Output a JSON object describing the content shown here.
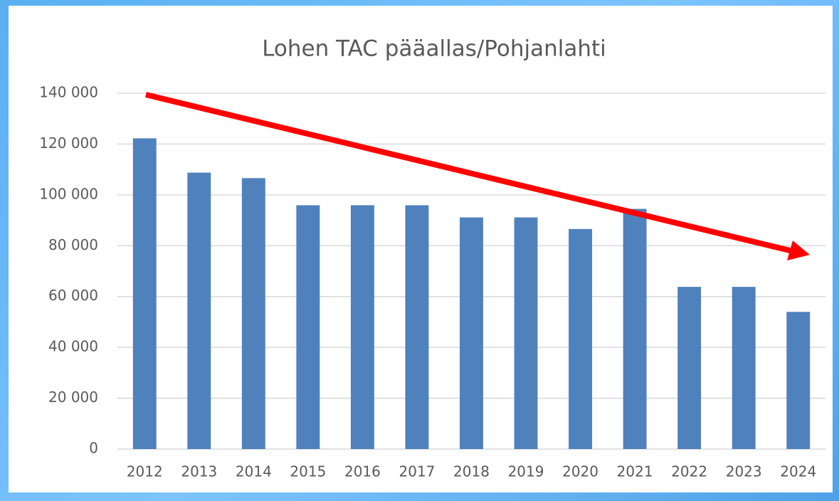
{
  "chart_data": {
    "type": "bar",
    "title": "Lohen TAC pääallas/Pohjanlahti",
    "categories": [
      "2012",
      "2013",
      "2014",
      "2015",
      "2016",
      "2017",
      "2018",
      "2019",
      "2020",
      "2021",
      "2022",
      "2023",
      "2024"
    ],
    "values": [
      122254,
      108762,
      106587,
      95928,
      95928,
      95928,
      91132,
      91132,
      86575,
      94496,
      63811,
      63811,
      53967
    ],
    "color": "#4f81bd",
    "ylim": [
      0,
      140000
    ],
    "yticks": [
      0,
      {
        "value": 20000,
        "label": "20 000"
      },
      {
        "value": 40000,
        "label": "40 000"
      },
      {
        "value": 60000,
        "label": "60 000"
      },
      {
        "value": 80000,
        "label": "80 000"
      },
      {
        "value": 100000,
        "label": "100 000"
      },
      {
        "value": 120000,
        "label": "120 000"
      },
      {
        "value": 140000,
        "label": "140 000"
      }
    ],
    "grid": true
  }
}
